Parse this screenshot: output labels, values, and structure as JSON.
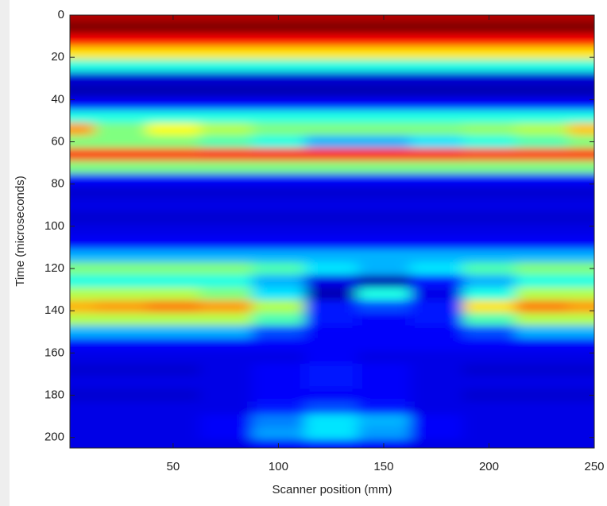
{
  "chart_data": {
    "type": "heatmap",
    "x_label": "Scanner position (mm)",
    "y_label": "Time (microseconds)",
    "colormap": "jet",
    "y_inverted": true,
    "xlim": [
      1,
      250
    ],
    "ylim": [
      0,
      205
    ],
    "xticks": [
      50,
      100,
      150,
      200,
      250
    ],
    "yticks": [
      0,
      20,
      40,
      60,
      80,
      100,
      120,
      140,
      160,
      180,
      200
    ],
    "x": [
      0,
      25,
      50,
      75,
      100,
      125,
      150,
      175,
      200,
      225,
      250
    ],
    "y": [
      0,
      6,
      12,
      18,
      24,
      30,
      36,
      42,
      48,
      54,
      60,
      66,
      72,
      78,
      84,
      90,
      96,
      102,
      108,
      114,
      120,
      126,
      132,
      138,
      144,
      150,
      156,
      162,
      168,
      174,
      180,
      186,
      192,
      198,
      204
    ],
    "z": [
      [
        0.95,
        0.95,
        0.95,
        0.95,
        0.95,
        0.95,
        0.95,
        0.95,
        0.95,
        0.95,
        0.95
      ],
      [
        1.0,
        1.0,
        1.0,
        1.0,
        1.0,
        1.0,
        1.0,
        1.0,
        1.0,
        1.0,
        1.0
      ],
      [
        0.88,
        0.88,
        0.88,
        0.88,
        0.88,
        0.88,
        0.88,
        0.88,
        0.88,
        0.88,
        0.88
      ],
      [
        0.65,
        0.65,
        0.65,
        0.65,
        0.65,
        0.65,
        0.65,
        0.65,
        0.65,
        0.65,
        0.65
      ],
      [
        0.4,
        0.4,
        0.4,
        0.4,
        0.4,
        0.4,
        0.4,
        0.4,
        0.4,
        0.4,
        0.4
      ],
      [
        0.08,
        0.08,
        0.08,
        0.08,
        0.08,
        0.08,
        0.08,
        0.08,
        0.08,
        0.08,
        0.08
      ],
      [
        0.05,
        0.05,
        0.05,
        0.05,
        0.05,
        0.05,
        0.05,
        0.05,
        0.05,
        0.05,
        0.05
      ],
      [
        0.12,
        0.12,
        0.12,
        0.12,
        0.12,
        0.12,
        0.12,
        0.12,
        0.12,
        0.12,
        0.12
      ],
      [
        0.4,
        0.4,
        0.4,
        0.4,
        0.4,
        0.4,
        0.4,
        0.4,
        0.4,
        0.4,
        0.4
      ],
      [
        0.72,
        0.5,
        0.62,
        0.55,
        0.5,
        0.5,
        0.5,
        0.5,
        0.52,
        0.55,
        0.68
      ],
      [
        0.5,
        0.5,
        0.5,
        0.45,
        0.4,
        0.3,
        0.3,
        0.35,
        0.4,
        0.45,
        0.5
      ],
      [
        0.82,
        0.82,
        0.82,
        0.84,
        0.85,
        0.85,
        0.85,
        0.84,
        0.82,
        0.82,
        0.82
      ],
      [
        0.5,
        0.5,
        0.5,
        0.5,
        0.5,
        0.5,
        0.5,
        0.5,
        0.5,
        0.5,
        0.5
      ],
      [
        0.12,
        0.12,
        0.12,
        0.12,
        0.12,
        0.12,
        0.12,
        0.12,
        0.12,
        0.12,
        0.12
      ],
      [
        0.08,
        0.08,
        0.08,
        0.08,
        0.08,
        0.08,
        0.08,
        0.08,
        0.08,
        0.08,
        0.08
      ],
      [
        0.1,
        0.1,
        0.1,
        0.1,
        0.1,
        0.1,
        0.1,
        0.1,
        0.1,
        0.1,
        0.1
      ],
      [
        0.08,
        0.08,
        0.08,
        0.08,
        0.08,
        0.08,
        0.08,
        0.08,
        0.08,
        0.08,
        0.08
      ],
      [
        0.1,
        0.1,
        0.1,
        0.1,
        0.1,
        0.1,
        0.1,
        0.1,
        0.1,
        0.1,
        0.1
      ],
      [
        0.12,
        0.12,
        0.12,
        0.12,
        0.12,
        0.12,
        0.12,
        0.12,
        0.12,
        0.12,
        0.12
      ],
      [
        0.3,
        0.3,
        0.3,
        0.3,
        0.3,
        0.3,
        0.3,
        0.3,
        0.3,
        0.3,
        0.3
      ],
      [
        0.5,
        0.5,
        0.5,
        0.5,
        0.45,
        0.35,
        0.3,
        0.35,
        0.45,
        0.5,
        0.5
      ],
      [
        0.4,
        0.4,
        0.4,
        0.4,
        0.3,
        0.1,
        0.05,
        0.15,
        0.3,
        0.4,
        0.4
      ],
      [
        0.55,
        0.55,
        0.55,
        0.5,
        0.35,
        0.05,
        0.4,
        0.1,
        0.4,
        0.55,
        0.55
      ],
      [
        0.7,
        0.72,
        0.75,
        0.72,
        0.55,
        0.15,
        0.2,
        0.15,
        0.65,
        0.75,
        0.72
      ],
      [
        0.55,
        0.55,
        0.55,
        0.55,
        0.45,
        0.15,
        0.12,
        0.15,
        0.45,
        0.55,
        0.55
      ],
      [
        0.3,
        0.3,
        0.3,
        0.3,
        0.2,
        0.12,
        0.12,
        0.12,
        0.2,
        0.3,
        0.3
      ],
      [
        0.12,
        0.12,
        0.12,
        0.12,
        0.12,
        0.12,
        0.12,
        0.12,
        0.12,
        0.12,
        0.12
      ],
      [
        0.1,
        0.1,
        0.1,
        0.1,
        0.1,
        0.12,
        0.1,
        0.1,
        0.1,
        0.1,
        0.1
      ],
      [
        0.08,
        0.08,
        0.08,
        0.1,
        0.12,
        0.15,
        0.12,
        0.1,
        0.08,
        0.08,
        0.08
      ],
      [
        0.1,
        0.1,
        0.1,
        0.1,
        0.12,
        0.15,
        0.12,
        0.1,
        0.1,
        0.1,
        0.1
      ],
      [
        0.08,
        0.08,
        0.08,
        0.1,
        0.12,
        0.12,
        0.12,
        0.1,
        0.08,
        0.08,
        0.08
      ],
      [
        0.1,
        0.1,
        0.1,
        0.1,
        0.15,
        0.2,
        0.15,
        0.1,
        0.1,
        0.1,
        0.1
      ],
      [
        0.1,
        0.1,
        0.1,
        0.12,
        0.25,
        0.35,
        0.3,
        0.12,
        0.1,
        0.1,
        0.1
      ],
      [
        0.1,
        0.1,
        0.1,
        0.12,
        0.28,
        0.35,
        0.28,
        0.12,
        0.1,
        0.1,
        0.1
      ],
      [
        0.1,
        0.1,
        0.1,
        0.1,
        0.12,
        0.15,
        0.12,
        0.1,
        0.1,
        0.1,
        0.1
      ]
    ]
  }
}
